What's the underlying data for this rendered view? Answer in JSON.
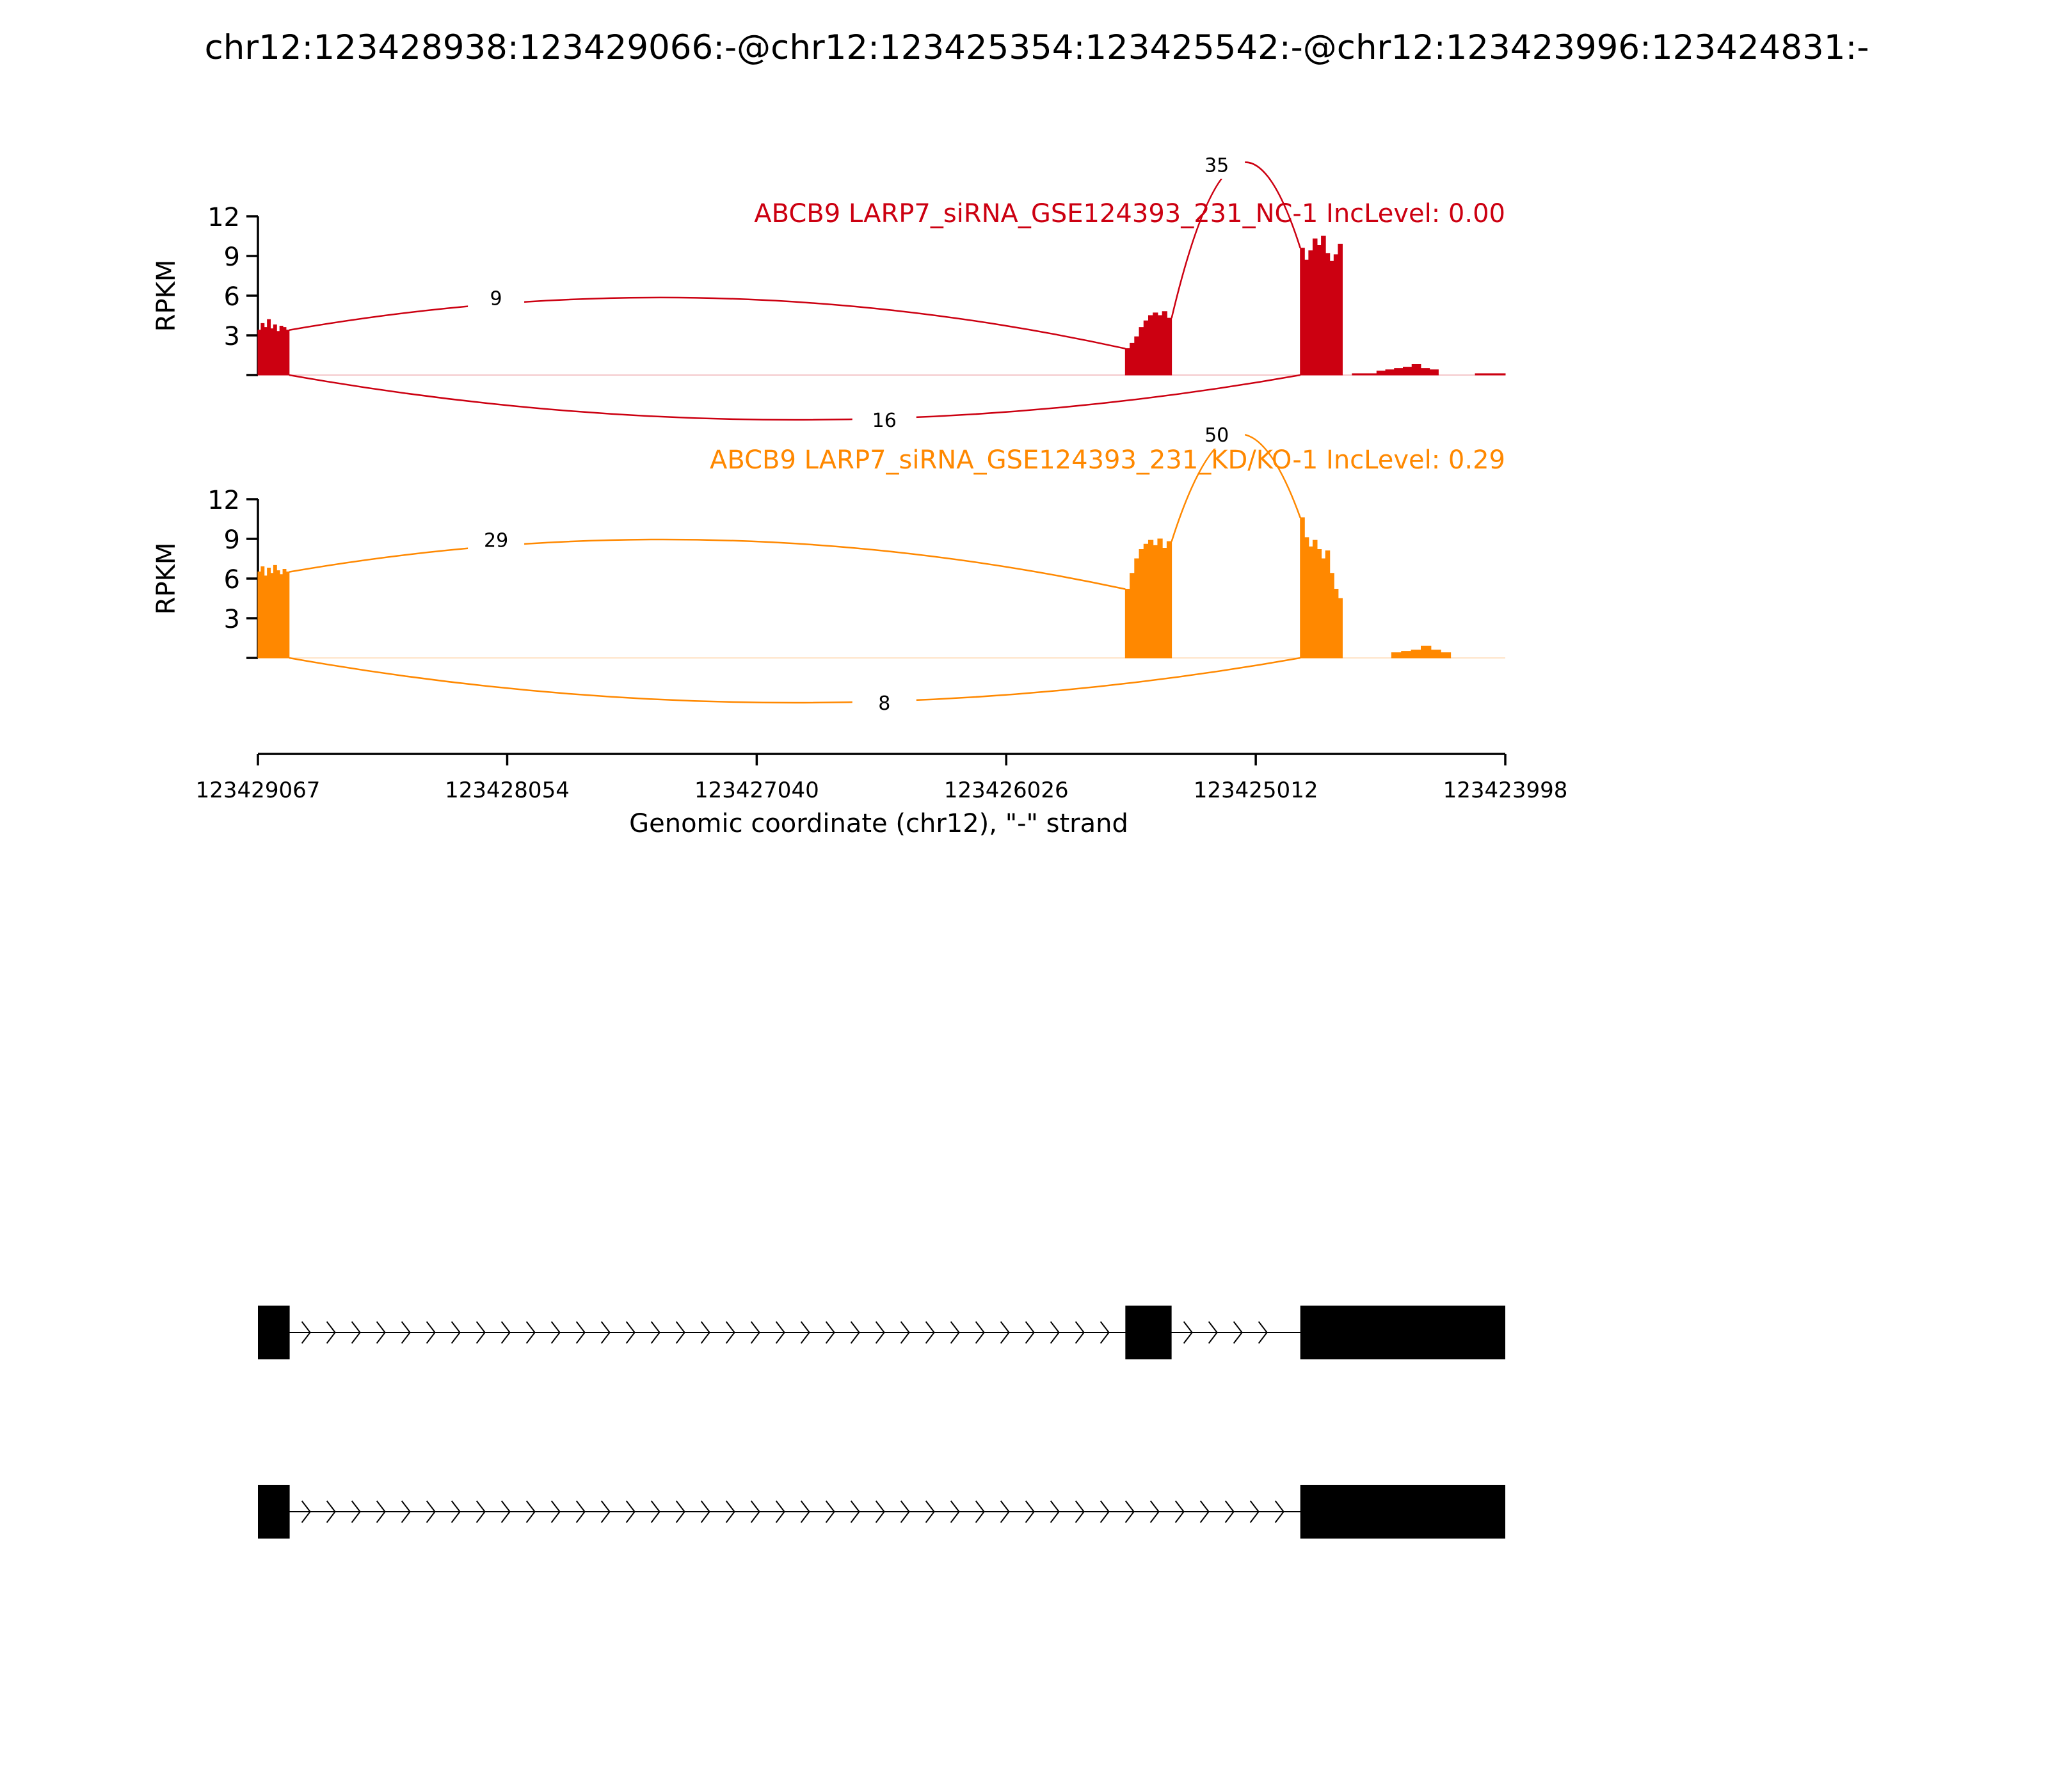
{
  "figure": {
    "title": "chr12:123428938:123429066:-@chr12:123425354:123425542:-@chr12:123423996:123424831:-"
  },
  "chart_data": {
    "type": "area",
    "ylabel": "RPKM",
    "yticks": [
      3,
      6,
      9,
      12
    ],
    "ylim": [
      0,
      12
    ],
    "xlabel": "Genomic coordinate (chr12), \"-\" strand",
    "xticks": [
      "123429067",
      "123428054",
      "123427040",
      "123426026",
      "123425012",
      "123423998"
    ],
    "xlim": [
      123429067,
      123423998
    ],
    "tracks": [
      {
        "title": "ABCB9 LARP7_siRNA_GSE124393_231_NC-1 IncLevel: 0.00",
        "color": "#CC0011",
        "coverage_segments": [
          {
            "start": 123429067,
            "end": 123428940,
            "profile": [
              3.4,
              3.9,
              3.6,
              4.2,
              3.5,
              3.8,
              3.3,
              3.7,
              3.6,
              3.4
            ]
          },
          {
            "start": 123425542,
            "end": 123425354,
            "profile": [
              2.0,
              2.4,
              2.9,
              3.6,
              4.1,
              4.5,
              4.7,
              4.5,
              4.8,
              4.3
            ]
          },
          {
            "start": 123424831,
            "end": 123424660,
            "profile": [
              9.6,
              8.7,
              9.4,
              10.3,
              9.8,
              10.5,
              9.2,
              8.6,
              9.1,
              9.9
            ]
          },
          {
            "start": 123424620,
            "end": 123424520,
            "profile": [
              0.1,
              0.1,
              0.1
            ]
          },
          {
            "start": 123424520,
            "end": 123424270,
            "profile": [
              0.3,
              0.4,
              0.5,
              0.6,
              0.8,
              0.5,
              0.4
            ]
          },
          {
            "start": 123424120,
            "end": 123423998,
            "profile": [
              0.1,
              0.1
            ]
          }
        ],
        "junctions_above": [
          {
            "label": "9",
            "from": 123428940,
            "to": 123425542
          },
          {
            "label": "35",
            "from": 123425354,
            "to": 123424831
          }
        ],
        "junctions_below": [
          {
            "label": "16",
            "from": 123428940,
            "to": 123424831
          }
        ]
      },
      {
        "title": "ABCB9 LARP7_siRNA_GSE124393_231_KD/KO-1 IncLevel: 0.29",
        "color": "#FF8800",
        "coverage_segments": [
          {
            "start": 123429067,
            "end": 123428940,
            "profile": [
              6.5,
              6.9,
              6.2,
              6.8,
              6.4,
              7.0,
              6.6,
              6.3,
              6.7,
              6.5
            ]
          },
          {
            "start": 123425542,
            "end": 123425354,
            "profile": [
              5.2,
              6.4,
              7.5,
              8.2,
              8.6,
              8.9,
              8.5,
              9.0,
              8.3,
              8.8
            ]
          },
          {
            "start": 123424831,
            "end": 123424660,
            "profile": [
              10.6,
              9.1,
              8.4,
              8.9,
              8.2,
              7.5,
              8.1,
              6.4,
              5.2,
              4.5
            ]
          },
          {
            "start": 123424460,
            "end": 123424220,
            "profile": [
              0.4,
              0.5,
              0.6,
              0.9,
              0.6,
              0.4
            ]
          }
        ],
        "junctions_above": [
          {
            "label": "29",
            "from": 123428940,
            "to": 123425542
          },
          {
            "label": "50",
            "from": 123425354,
            "to": 123424831
          }
        ],
        "junctions_below": [
          {
            "label": "8",
            "from": 123428940,
            "to": 123424831
          }
        ]
      }
    ],
    "gene_models": [
      {
        "exons": [
          [
            123429067,
            123428938
          ],
          [
            123425542,
            123425354
          ],
          [
            123424831,
            123423998
          ]
        ]
      },
      {
        "exons": [
          [
            123429067,
            123428938
          ],
          [
            123424831,
            123423998
          ]
        ]
      }
    ]
  }
}
